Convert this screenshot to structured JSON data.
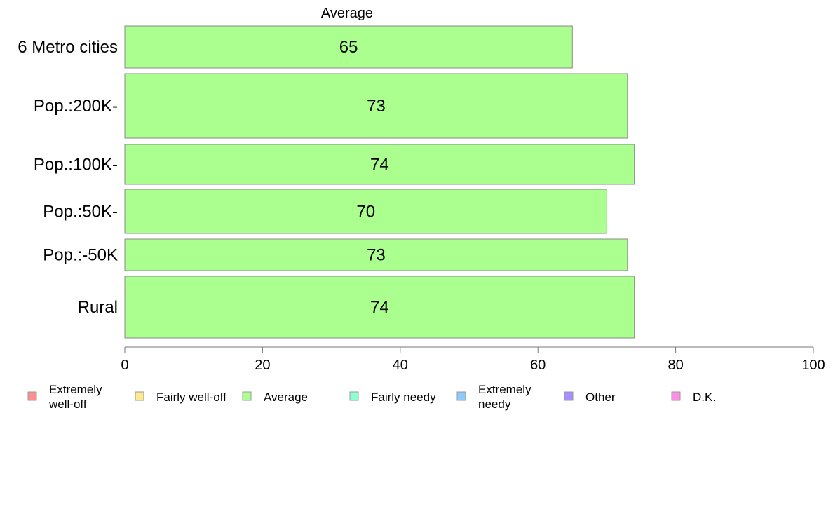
{
  "chart_data": {
    "type": "bar",
    "orientation": "horizontal",
    "title": "Average",
    "categories": [
      "6 Metro cities",
      "Pop.:200K-",
      "Pop.:100K-",
      "Pop.:50K-",
      "Pop.:-50K",
      "Rural"
    ],
    "values": [
      65,
      73,
      74,
      70,
      73,
      74
    ],
    "value_labels": [
      "65",
      "73",
      "74",
      "70",
      "73",
      "74"
    ],
    "bar_color": "#aaff8f",
    "xlim": [
      0,
      100
    ],
    "xticks": [
      0,
      20,
      40,
      60,
      80,
      100
    ],
    "xtick_labels": [
      "0",
      "20",
      "40",
      "60",
      "80",
      "100"
    ],
    "xlabel": "",
    "ylabel": "",
    "grid": false,
    "legend_position": "bottom",
    "legend": [
      {
        "lines": [
          "Extremely",
          "well-off"
        ],
        "color": "#ff8f8f"
      },
      {
        "lines": [
          "Fairly well-off"
        ],
        "color": "#ffe98f"
      },
      {
        "lines": [
          "Average"
        ],
        "color": "#aaff8f"
      },
      {
        "lines": [
          "Fairly needy"
        ],
        "color": "#8fffd0"
      },
      {
        "lines": [
          "Extremely",
          "needy"
        ],
        "color": "#8fcaff"
      },
      {
        "lines": [
          "Other"
        ],
        "color": "#a88fff"
      },
      {
        "lines": [
          "D.K."
        ],
        "color": "#ff8fe6"
      }
    ]
  }
}
